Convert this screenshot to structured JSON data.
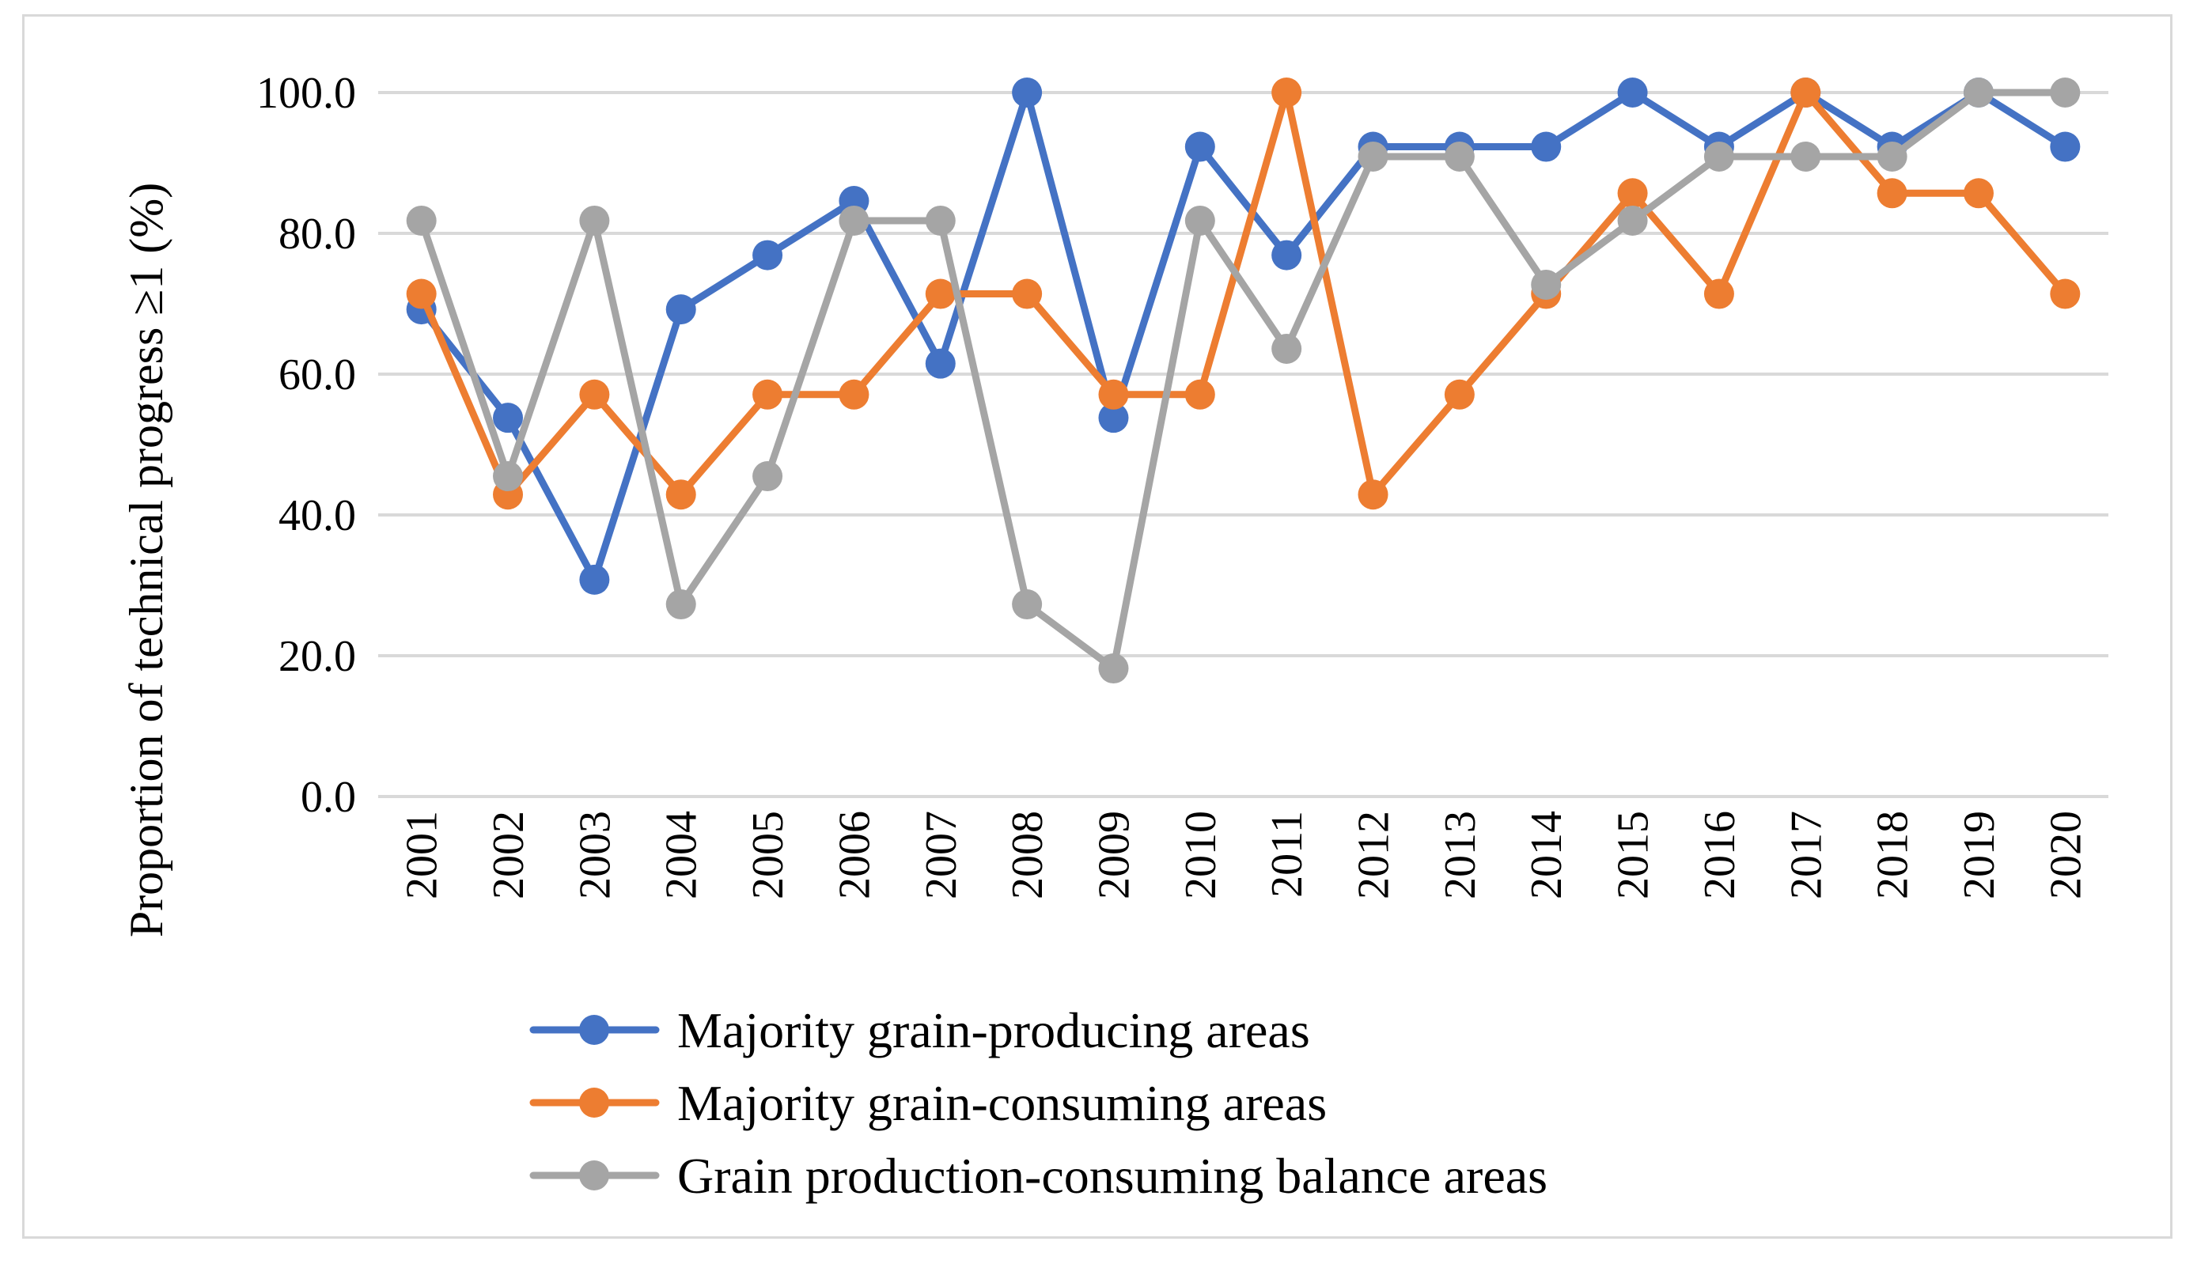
{
  "chart_data": {
    "type": "line",
    "title": "",
    "xlabel": "",
    "ylabel": "Proportion of technical progress ≥1 (%)",
    "ylim": [
      0,
      100
    ],
    "yticks": [
      "0.0",
      "20.0",
      "40.0",
      "60.0",
      "80.0",
      "100.0"
    ],
    "ytick_values": [
      0,
      20,
      40,
      60,
      80,
      100
    ],
    "grid": true,
    "legend_position": "bottom",
    "categories": [
      "2001",
      "2002",
      "2003",
      "2004",
      "2005",
      "2006",
      "2007",
      "2008",
      "2009",
      "2010",
      "2011",
      "2012",
      "2013",
      "2014",
      "2015",
      "2016",
      "2017",
      "2018",
      "2019",
      "2020"
    ],
    "series": [
      {
        "name": "Majority grain-producing areas",
        "color": "#4472C4",
        "values": [
          69.2,
          53.8,
          30.8,
          69.2,
          76.9,
          84.6,
          61.5,
          100.0,
          53.8,
          92.3,
          76.9,
          92.3,
          92.3,
          92.3,
          100.0,
          92.3,
          100.0,
          92.3,
          100.0,
          92.3
        ]
      },
      {
        "name": "Majority grain-consuming areas",
        "color": "#ED7D31",
        "values": [
          71.4,
          42.9,
          57.1,
          42.9,
          57.1,
          57.1,
          71.4,
          71.4,
          57.1,
          57.1,
          100.0,
          42.9,
          57.1,
          71.4,
          85.7,
          71.4,
          100.0,
          85.7,
          85.7,
          71.4
        ]
      },
      {
        "name": "Grain production-consuming balance areas",
        "color": "#A5A5A5",
        "values": [
          81.8,
          45.5,
          81.8,
          27.3,
          45.5,
          81.8,
          81.8,
          27.3,
          18.2,
          81.8,
          63.6,
          90.9,
          90.9,
          72.7,
          81.8,
          90.9,
          90.9,
          90.9,
          100.0,
          100.0
        ]
      }
    ]
  }
}
